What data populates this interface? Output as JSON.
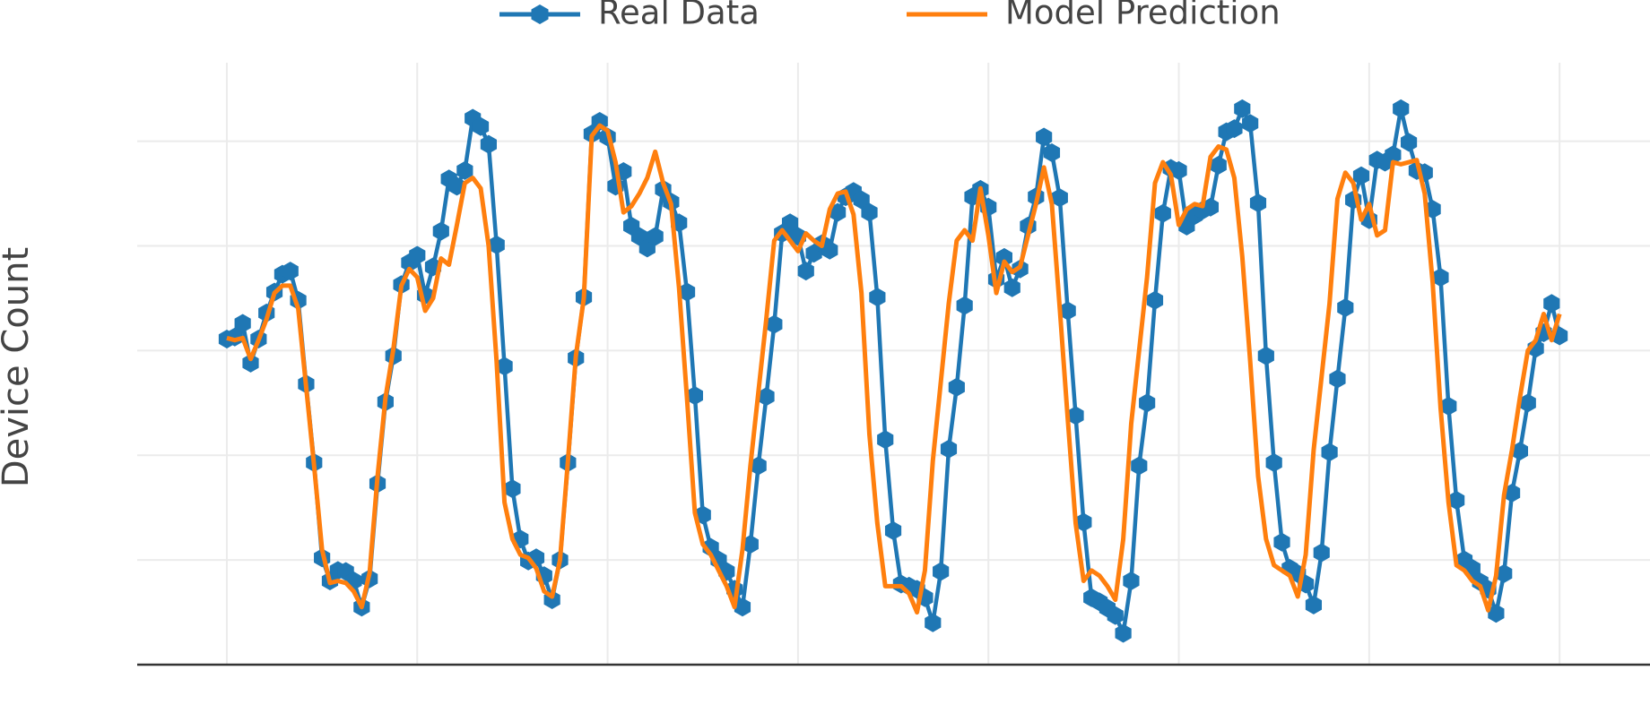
{
  "chart_data": {
    "type": "line",
    "y_label": "Device Count",
    "legend": "top",
    "grid": true,
    "xlim": [
      -11.3,
      179.4
    ],
    "xticks": [
      0,
      24,
      48,
      72,
      96,
      120,
      144,
      168
    ],
    "ylim": [
      0,
      5.75
    ],
    "yticks": [
      1,
      2,
      3,
      4,
      5
    ],
    "series": [
      {
        "name": "Real Data",
        "color": "#1f77b4",
        "marker": "hexagon",
        "values": [
          3.11,
          3.13,
          3.26,
          2.88,
          3.11,
          3.36,
          3.56,
          3.73,
          3.76,
          3.48,
          2.68,
          1.93,
          1.02,
          0.8,
          0.9,
          0.89,
          0.8,
          0.55,
          0.82,
          1.73,
          2.51,
          2.95,
          3.63,
          3.84,
          3.91,
          3.53,
          3.8,
          4.14,
          4.64,
          4.57,
          4.72,
          5.22,
          5.14,
          4.97,
          4.01,
          2.85,
          1.68,
          1.2,
          0.99,
          1.02,
          0.85,
          0.62,
          1.0,
          1.93,
          2.93,
          3.51,
          5.07,
          5.19,
          5.04,
          4.57,
          4.71,
          4.19,
          4.09,
          3.98,
          4.09,
          4.54,
          4.42,
          4.22,
          3.56,
          2.57,
          1.43,
          1.12,
          1.0,
          0.89,
          0.72,
          0.55,
          1.15,
          1.9,
          2.56,
          3.25,
          4.12,
          4.22,
          4.09,
          3.76,
          3.93,
          4.02,
          3.96,
          4.32,
          4.47,
          4.52,
          4.44,
          4.32,
          3.51,
          2.15,
          1.28,
          0.77,
          0.75,
          0.72,
          0.64,
          0.4,
          0.89,
          2.06,
          2.65,
          3.43,
          4.47,
          4.54,
          4.37,
          3.68,
          3.89,
          3.6,
          3.78,
          4.19,
          4.47,
          5.04,
          4.89,
          4.46,
          3.38,
          2.38,
          1.36,
          0.64,
          0.6,
          0.54,
          0.47,
          0.3,
          0.8,
          1.9,
          2.5,
          3.48,
          4.31,
          4.74,
          4.72,
          4.19,
          4.29,
          4.34,
          4.37,
          4.77,
          5.09,
          5.12,
          5.31,
          5.17,
          4.41,
          2.95,
          1.93,
          1.17,
          0.92,
          0.87,
          0.77,
          0.57,
          1.07,
          2.03,
          2.73,
          3.41,
          4.44,
          4.67,
          4.25,
          4.82,
          4.8,
          4.87,
          5.31,
          4.99,
          4.72,
          4.7,
          4.35,
          3.7,
          2.47,
          1.57,
          1.0,
          0.92,
          0.79,
          0.72,
          0.49,
          0.87,
          1.64,
          2.04,
          2.5,
          3.02,
          3.17,
          3.45,
          3.14
        ]
      },
      {
        "name": "Model Prediction",
        "color": "#ff7f0e",
        "values": [
          3.12,
          3.1,
          3.12,
          2.92,
          3.1,
          3.3,
          3.55,
          3.62,
          3.62,
          3.4,
          2.65,
          1.9,
          1.1,
          0.78,
          0.8,
          0.78,
          0.7,
          0.55,
          0.88,
          1.8,
          2.55,
          3.02,
          3.62,
          3.78,
          3.7,
          3.38,
          3.5,
          3.88,
          3.82,
          4.2,
          4.6,
          4.65,
          4.55,
          4.0,
          2.9,
          1.55,
          1.2,
          1.05,
          1.02,
          0.92,
          0.7,
          0.65,
          1.0,
          1.95,
          2.95,
          3.5,
          5.05,
          5.15,
          5.1,
          4.8,
          4.32,
          4.38,
          4.5,
          4.65,
          4.9,
          4.6,
          4.4,
          3.6,
          2.55,
          1.45,
          1.15,
          1.05,
          0.9,
          0.75,
          0.55,
          1.1,
          1.9,
          2.6,
          3.3,
          4.05,
          4.15,
          4.05,
          3.95,
          4.12,
          4.05,
          4.0,
          4.35,
          4.5,
          4.52,
          4.3,
          3.55,
          2.2,
          1.35,
          0.75,
          0.75,
          0.75,
          0.68,
          0.5,
          0.9,
          1.95,
          2.7,
          3.45,
          4.05,
          4.15,
          4.05,
          4.55,
          4.1,
          3.55,
          3.85,
          3.75,
          3.8,
          4.1,
          4.4,
          4.75,
          4.4,
          3.4,
          2.35,
          1.35,
          0.8,
          0.9,
          0.85,
          0.75,
          0.62,
          1.2,
          2.3,
          3.0,
          3.7,
          4.6,
          4.8,
          4.68,
          4.2,
          4.35,
          4.4,
          4.38,
          4.85,
          4.95,
          4.92,
          4.65,
          3.9,
          2.9,
          1.8,
          1.2,
          0.95,
          0.9,
          0.85,
          0.65,
          1.05,
          2.05,
          2.75,
          3.45,
          4.45,
          4.7,
          4.6,
          4.25,
          4.4,
          4.1,
          4.15,
          4.8,
          4.78,
          4.8,
          4.82,
          4.5,
          3.65,
          2.45,
          1.55,
          0.95,
          0.9,
          0.8,
          0.75,
          0.52,
          0.85,
          1.62,
          2.05,
          2.55,
          3.0,
          3.1,
          3.35,
          3.1,
          3.35
        ]
      }
    ]
  }
}
